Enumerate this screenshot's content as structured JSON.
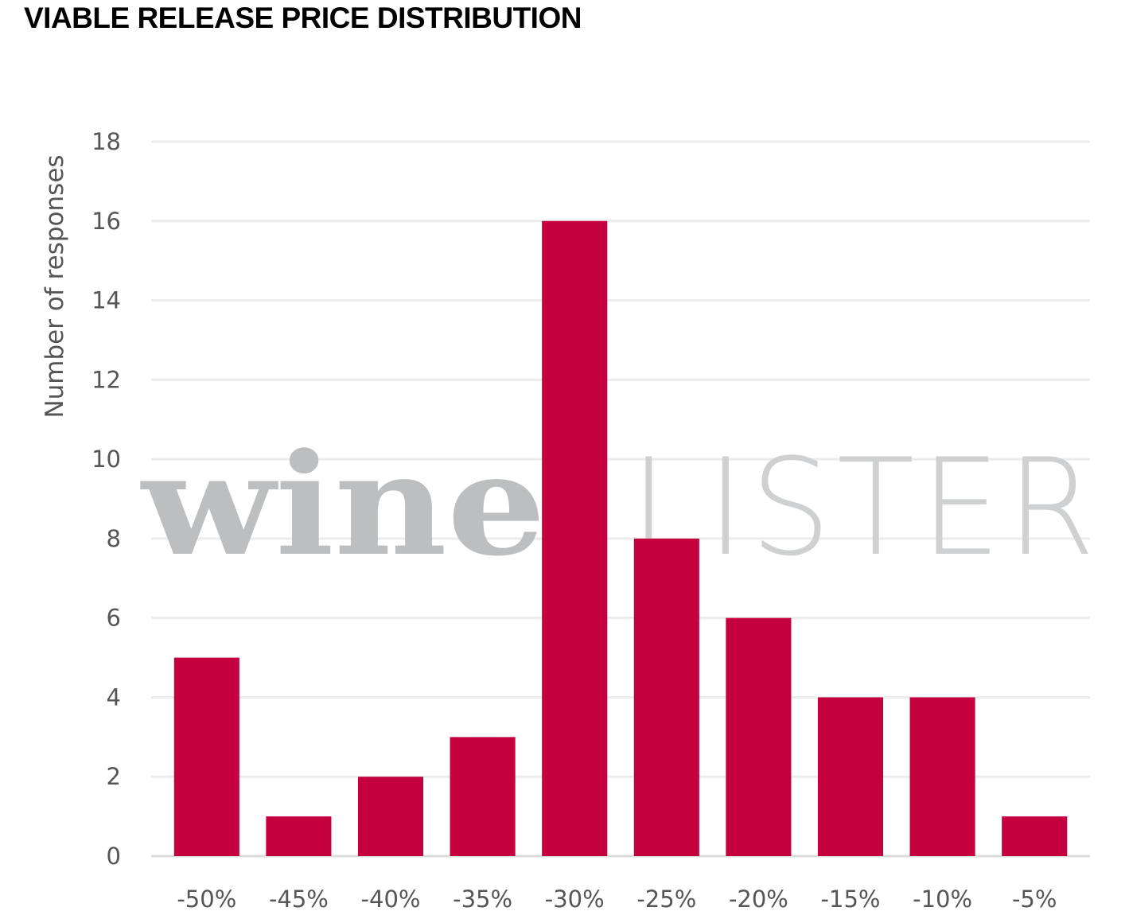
{
  "title": "VIABLE RELEASE PRICE DISTRIBUTION",
  "watermark": {
    "logo": "wineLISTER"
  },
  "colors": {
    "bar": "#c4003f",
    "grid": "#ececec",
    "axis_text": "#555555"
  },
  "chart_data": {
    "type": "bar",
    "categories": [
      "-50%",
      "-45%",
      "-40%",
      "-35%",
      "-30%",
      "-25%",
      "-20%",
      "-15%",
      "-10%",
      "-5%"
    ],
    "values": [
      5,
      1,
      2,
      3,
      16,
      8,
      6,
      4,
      4,
      1
    ],
    "ylabel": "Number of responses",
    "xlabel": "",
    "ylim": [
      0,
      18
    ],
    "yticks": [
      0,
      2,
      4,
      6,
      8,
      10,
      12,
      14,
      16,
      18
    ],
    "grid": true,
    "legend": "none"
  }
}
